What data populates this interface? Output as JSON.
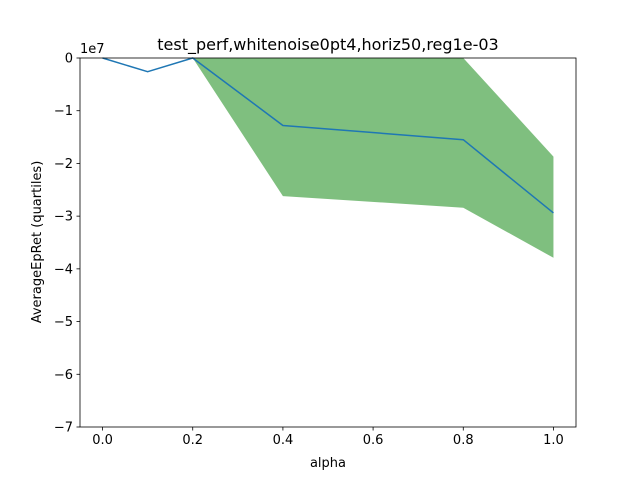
{
  "chart_data": {
    "type": "line",
    "title": "test_perf,whitenoise0pt4,horiz50,reg1e-03",
    "xlabel": "alpha",
    "ylabel": "AverageEpRet (quartiles)",
    "y_offset_label": "1e7",
    "y_scale": 10000000,
    "xlim": [
      -0.05,
      1.05
    ],
    "ylim": [
      -70000000,
      0
    ],
    "x_ticks": [
      0.0,
      0.2,
      0.4,
      0.6,
      0.8,
      1.0
    ],
    "x_tick_labels": [
      "0.0",
      "0.2",
      "0.4",
      "0.6",
      "0.8",
      "1.0"
    ],
    "y_ticks": [
      0,
      -10000000,
      -20000000,
      -30000000,
      -40000000,
      -50000000,
      -60000000,
      -70000000
    ],
    "y_tick_labels": [
      "0",
      "−1",
      "−2",
      "−3",
      "−4",
      "−5",
      "−6",
      "−7"
    ],
    "grid": false,
    "x": [
      0.0,
      0.1,
      0.2,
      0.4,
      0.8,
      1.0
    ],
    "series": [
      {
        "values": [
          0,
          -2600000,
          0,
          -12800000,
          -15500000,
          -29400000
        ],
        "color": "#1f77b4"
      }
    ],
    "band": {
      "upper": [
        0,
        -2600000,
        0,
        0,
        0,
        -18700000
      ],
      "lower": [
        0,
        -2600000,
        0,
        -26200000,
        -28400000,
        -37900000
      ],
      "color": "#008000",
      "opacity": 0.5
    }
  }
}
